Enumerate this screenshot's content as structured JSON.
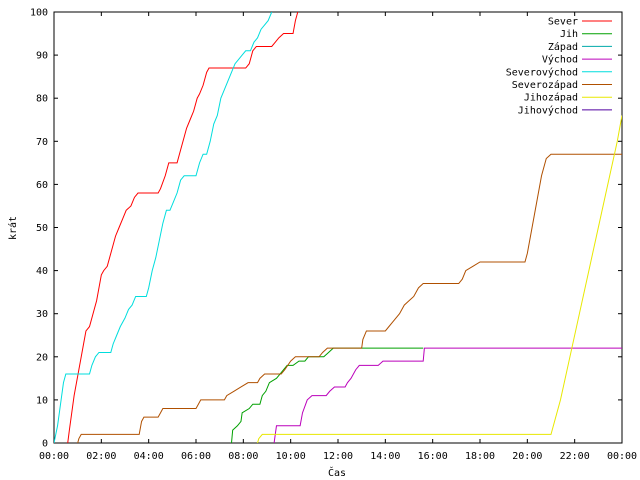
{
  "chart_data": {
    "type": "line",
    "title": "",
    "xlabel": "Čas",
    "ylabel": "krát",
    "xlim": [
      0,
      24
    ],
    "ylim": [
      0,
      100
    ],
    "x_unit": "hours",
    "x_ticks": [
      {
        "value": 0,
        "label": "00:00"
      },
      {
        "value": 2,
        "label": "02:00"
      },
      {
        "value": 4,
        "label": "04:00"
      },
      {
        "value": 6,
        "label": "06:00"
      },
      {
        "value": 8,
        "label": "08:00"
      },
      {
        "value": 10,
        "label": "10:00"
      },
      {
        "value": 12,
        "label": "12:00"
      },
      {
        "value": 14,
        "label": "14:00"
      },
      {
        "value": 16,
        "label": "16:00"
      },
      {
        "value": 18,
        "label": "18:00"
      },
      {
        "value": 20,
        "label": "20:00"
      },
      {
        "value": 22,
        "label": "22:00"
      },
      {
        "value": 24,
        "label": "00:00"
      }
    ],
    "y_ticks": [
      0,
      10,
      20,
      30,
      40,
      50,
      60,
      70,
      80,
      90,
      100
    ],
    "grid": false,
    "legend_position": "top-right",
    "series": [
      {
        "name": "Sever",
        "color": "#ff0000",
        "points": [
          [
            0.58,
            0
          ],
          [
            0.65,
            3
          ],
          [
            0.75,
            7
          ],
          [
            0.85,
            11
          ],
          [
            0.95,
            14
          ],
          [
            1.05,
            17
          ],
          [
            1.15,
            20
          ],
          [
            1.25,
            23
          ],
          [
            1.35,
            26
          ],
          [
            1.5,
            27
          ],
          [
            1.6,
            29
          ],
          [
            1.7,
            31
          ],
          [
            1.8,
            33
          ],
          [
            1.9,
            36
          ],
          [
            2.0,
            39
          ],
          [
            2.1,
            40
          ],
          [
            2.25,
            41
          ],
          [
            2.4,
            44
          ],
          [
            2.5,
            46
          ],
          [
            2.6,
            48
          ],
          [
            2.75,
            50
          ],
          [
            2.9,
            52
          ],
          [
            3.05,
            54
          ],
          [
            3.25,
            55
          ],
          [
            3.4,
            57
          ],
          [
            3.55,
            58
          ],
          [
            4.4,
            58
          ],
          [
            4.5,
            59
          ],
          [
            4.7,
            62
          ],
          [
            4.85,
            65
          ],
          [
            5.2,
            65
          ],
          [
            5.35,
            68
          ],
          [
            5.5,
            71
          ],
          [
            5.6,
            73
          ],
          [
            5.75,
            75
          ],
          [
            5.9,
            77
          ],
          [
            6.05,
            80
          ],
          [
            6.15,
            81
          ],
          [
            6.3,
            83
          ],
          [
            6.45,
            86
          ],
          [
            6.55,
            87
          ],
          [
            8.1,
            87
          ],
          [
            8.25,
            88
          ],
          [
            8.4,
            91
          ],
          [
            8.55,
            92
          ],
          [
            9.2,
            92
          ],
          [
            9.35,
            93
          ],
          [
            9.5,
            94
          ],
          [
            9.7,
            95
          ],
          [
            10.1,
            95
          ],
          [
            10.2,
            98
          ],
          [
            10.3,
            100
          ]
        ]
      },
      {
        "name": "Jih",
        "color": "#00a000",
        "points": [
          [
            7.5,
            0
          ],
          [
            7.55,
            3
          ],
          [
            7.75,
            4
          ],
          [
            7.9,
            5
          ],
          [
            7.95,
            7
          ],
          [
            8.25,
            8
          ],
          [
            8.4,
            9
          ],
          [
            8.7,
            9
          ],
          [
            8.8,
            11
          ],
          [
            8.95,
            12
          ],
          [
            9.1,
            14
          ],
          [
            9.4,
            15
          ],
          [
            9.55,
            16
          ],
          [
            9.7,
            17
          ],
          [
            9.85,
            18
          ],
          [
            10.1,
            18
          ],
          [
            10.35,
            19
          ],
          [
            10.6,
            19
          ],
          [
            10.75,
            20
          ],
          [
            11.4,
            20
          ],
          [
            11.6,
            21
          ],
          [
            11.8,
            22
          ],
          [
            15.6,
            22
          ]
        ]
      },
      {
        "name": "Západ",
        "color": "#00aaaa",
        "points": []
      },
      {
        "name": "Východ",
        "color": "#bb00bb",
        "points": [
          [
            9.3,
            0
          ],
          [
            9.35,
            2
          ],
          [
            9.4,
            4
          ],
          [
            10.4,
            4
          ],
          [
            10.5,
            7
          ],
          [
            10.7,
            10
          ],
          [
            10.9,
            11
          ],
          [
            11.5,
            11
          ],
          [
            11.65,
            12
          ],
          [
            11.85,
            13
          ],
          [
            12.3,
            13
          ],
          [
            12.4,
            14
          ],
          [
            12.55,
            15
          ],
          [
            12.75,
            17
          ],
          [
            12.9,
            18
          ],
          [
            13.7,
            18
          ],
          [
            13.9,
            19
          ],
          [
            15.6,
            19
          ],
          [
            15.65,
            22
          ],
          [
            24,
            22
          ]
        ]
      },
      {
        "name": "Severovýchod",
        "color": "#00dddd",
        "points": [
          [
            0,
            0
          ],
          [
            0.15,
            4
          ],
          [
            0.3,
            10
          ],
          [
            0.4,
            14
          ],
          [
            0.5,
            16
          ],
          [
            1.5,
            16
          ],
          [
            1.6,
            18
          ],
          [
            1.75,
            20
          ],
          [
            1.9,
            21
          ],
          [
            2.4,
            21
          ],
          [
            2.5,
            23
          ],
          [
            2.65,
            25
          ],
          [
            2.8,
            27
          ],
          [
            3.0,
            29
          ],
          [
            3.15,
            31
          ],
          [
            3.3,
            32
          ],
          [
            3.45,
            34
          ],
          [
            3.9,
            34
          ],
          [
            4.0,
            36
          ],
          [
            4.15,
            40
          ],
          [
            4.3,
            43
          ],
          [
            4.45,
            47
          ],
          [
            4.6,
            51
          ],
          [
            4.75,
            54
          ],
          [
            4.9,
            54
          ],
          [
            5.05,
            56
          ],
          [
            5.2,
            58
          ],
          [
            5.35,
            61
          ],
          [
            5.5,
            62
          ],
          [
            6.0,
            62
          ],
          [
            6.15,
            65
          ],
          [
            6.3,
            67
          ],
          [
            6.45,
            67
          ],
          [
            6.6,
            70
          ],
          [
            6.75,
            74
          ],
          [
            6.9,
            76
          ],
          [
            7.05,
            80
          ],
          [
            7.2,
            82
          ],
          [
            7.35,
            84
          ],
          [
            7.5,
            86
          ],
          [
            7.65,
            88
          ],
          [
            7.8,
            89
          ],
          [
            7.95,
            90
          ],
          [
            8.1,
            91
          ],
          [
            8.3,
            91
          ],
          [
            8.45,
            93
          ],
          [
            8.6,
            94
          ],
          [
            8.75,
            96
          ],
          [
            8.9,
            97
          ],
          [
            9.05,
            98
          ],
          [
            9.2,
            100
          ]
        ]
      },
      {
        "name": "Severozápad",
        "color": "#b05000",
        "points": [
          [
            1.0,
            0
          ],
          [
            1.05,
            1
          ],
          [
            1.15,
            2
          ],
          [
            3.6,
            2
          ],
          [
            3.7,
            5
          ],
          [
            3.8,
            6
          ],
          [
            4.4,
            6
          ],
          [
            4.5,
            7
          ],
          [
            4.6,
            8
          ],
          [
            6.0,
            8
          ],
          [
            6.1,
            9
          ],
          [
            6.2,
            10
          ],
          [
            7.2,
            10
          ],
          [
            7.3,
            11
          ],
          [
            7.6,
            12
          ],
          [
            7.9,
            13
          ],
          [
            8.2,
            14
          ],
          [
            8.6,
            14
          ],
          [
            8.7,
            15
          ],
          [
            8.9,
            16
          ],
          [
            9.6,
            16
          ],
          [
            9.75,
            17
          ],
          [
            10.0,
            19
          ],
          [
            10.2,
            20
          ],
          [
            11.2,
            20
          ],
          [
            11.35,
            21
          ],
          [
            11.55,
            22
          ],
          [
            13.0,
            22
          ],
          [
            13.05,
            24
          ],
          [
            13.2,
            26
          ],
          [
            14.0,
            26
          ],
          [
            14.15,
            27
          ],
          [
            14.3,
            28
          ],
          [
            14.6,
            30
          ],
          [
            14.8,
            32
          ],
          [
            15.0,
            33
          ],
          [
            15.2,
            34
          ],
          [
            15.4,
            36
          ],
          [
            15.6,
            37
          ],
          [
            17.1,
            37
          ],
          [
            17.25,
            38
          ],
          [
            17.4,
            40
          ],
          [
            17.7,
            41
          ],
          [
            18.0,
            42
          ],
          [
            19.9,
            42
          ],
          [
            20.0,
            44
          ],
          [
            20.2,
            50
          ],
          [
            20.4,
            56
          ],
          [
            20.6,
            62
          ],
          [
            20.8,
            66
          ],
          [
            21.0,
            67
          ],
          [
            24,
            67
          ]
        ]
      },
      {
        "name": "Jihozápad",
        "color": "#e8e800",
        "points": [
          [
            8.6,
            0
          ],
          [
            8.65,
            1
          ],
          [
            8.8,
            2
          ],
          [
            21.0,
            2
          ],
          [
            21.4,
            10
          ],
          [
            21.8,
            20
          ],
          [
            22.2,
            30
          ],
          [
            22.6,
            40
          ],
          [
            23.0,
            50
          ],
          [
            23.4,
            60
          ],
          [
            23.8,
            70
          ],
          [
            24.0,
            76
          ]
        ]
      },
      {
        "name": "Jihovýchod",
        "color": "#5000a0",
        "points": []
      }
    ]
  }
}
